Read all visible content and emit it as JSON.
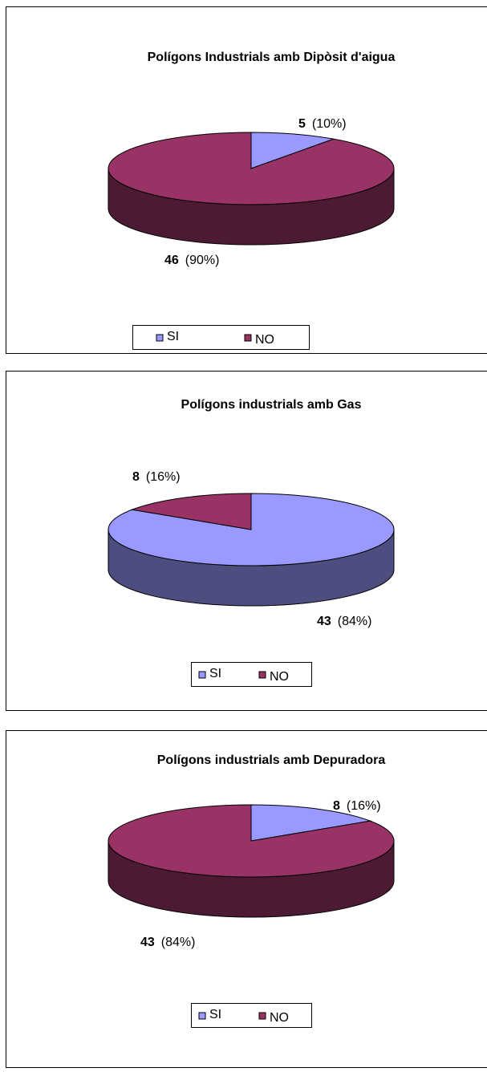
{
  "chart_data": [
    {
      "type": "pie3d",
      "title": "Polígons Industrials amb Dipòsit d'aigua",
      "categories": [
        "SI",
        "NO"
      ],
      "values": [
        5,
        46
      ],
      "percent_labels": [
        "(10%)",
        "(90%)"
      ],
      "colors": [
        "#9999ff",
        "#993366"
      ]
    },
    {
      "type": "pie3d",
      "title": "Polígons industrials amb Gas",
      "categories": [
        "SI",
        "NO"
      ],
      "values": [
        43,
        8
      ],
      "percent_labels": [
        "(84%)",
        "(16%)"
      ],
      "colors": [
        "#9999ff",
        "#993366"
      ]
    },
    {
      "type": "pie3d",
      "title": "Polígons industrials amb Depuradora",
      "categories": [
        "SI",
        "NO"
      ],
      "values": [
        8,
        43
      ],
      "percent_labels": [
        "(16%)",
        "(84%)"
      ],
      "colors": [
        "#9999ff",
        "#993366"
      ]
    }
  ]
}
